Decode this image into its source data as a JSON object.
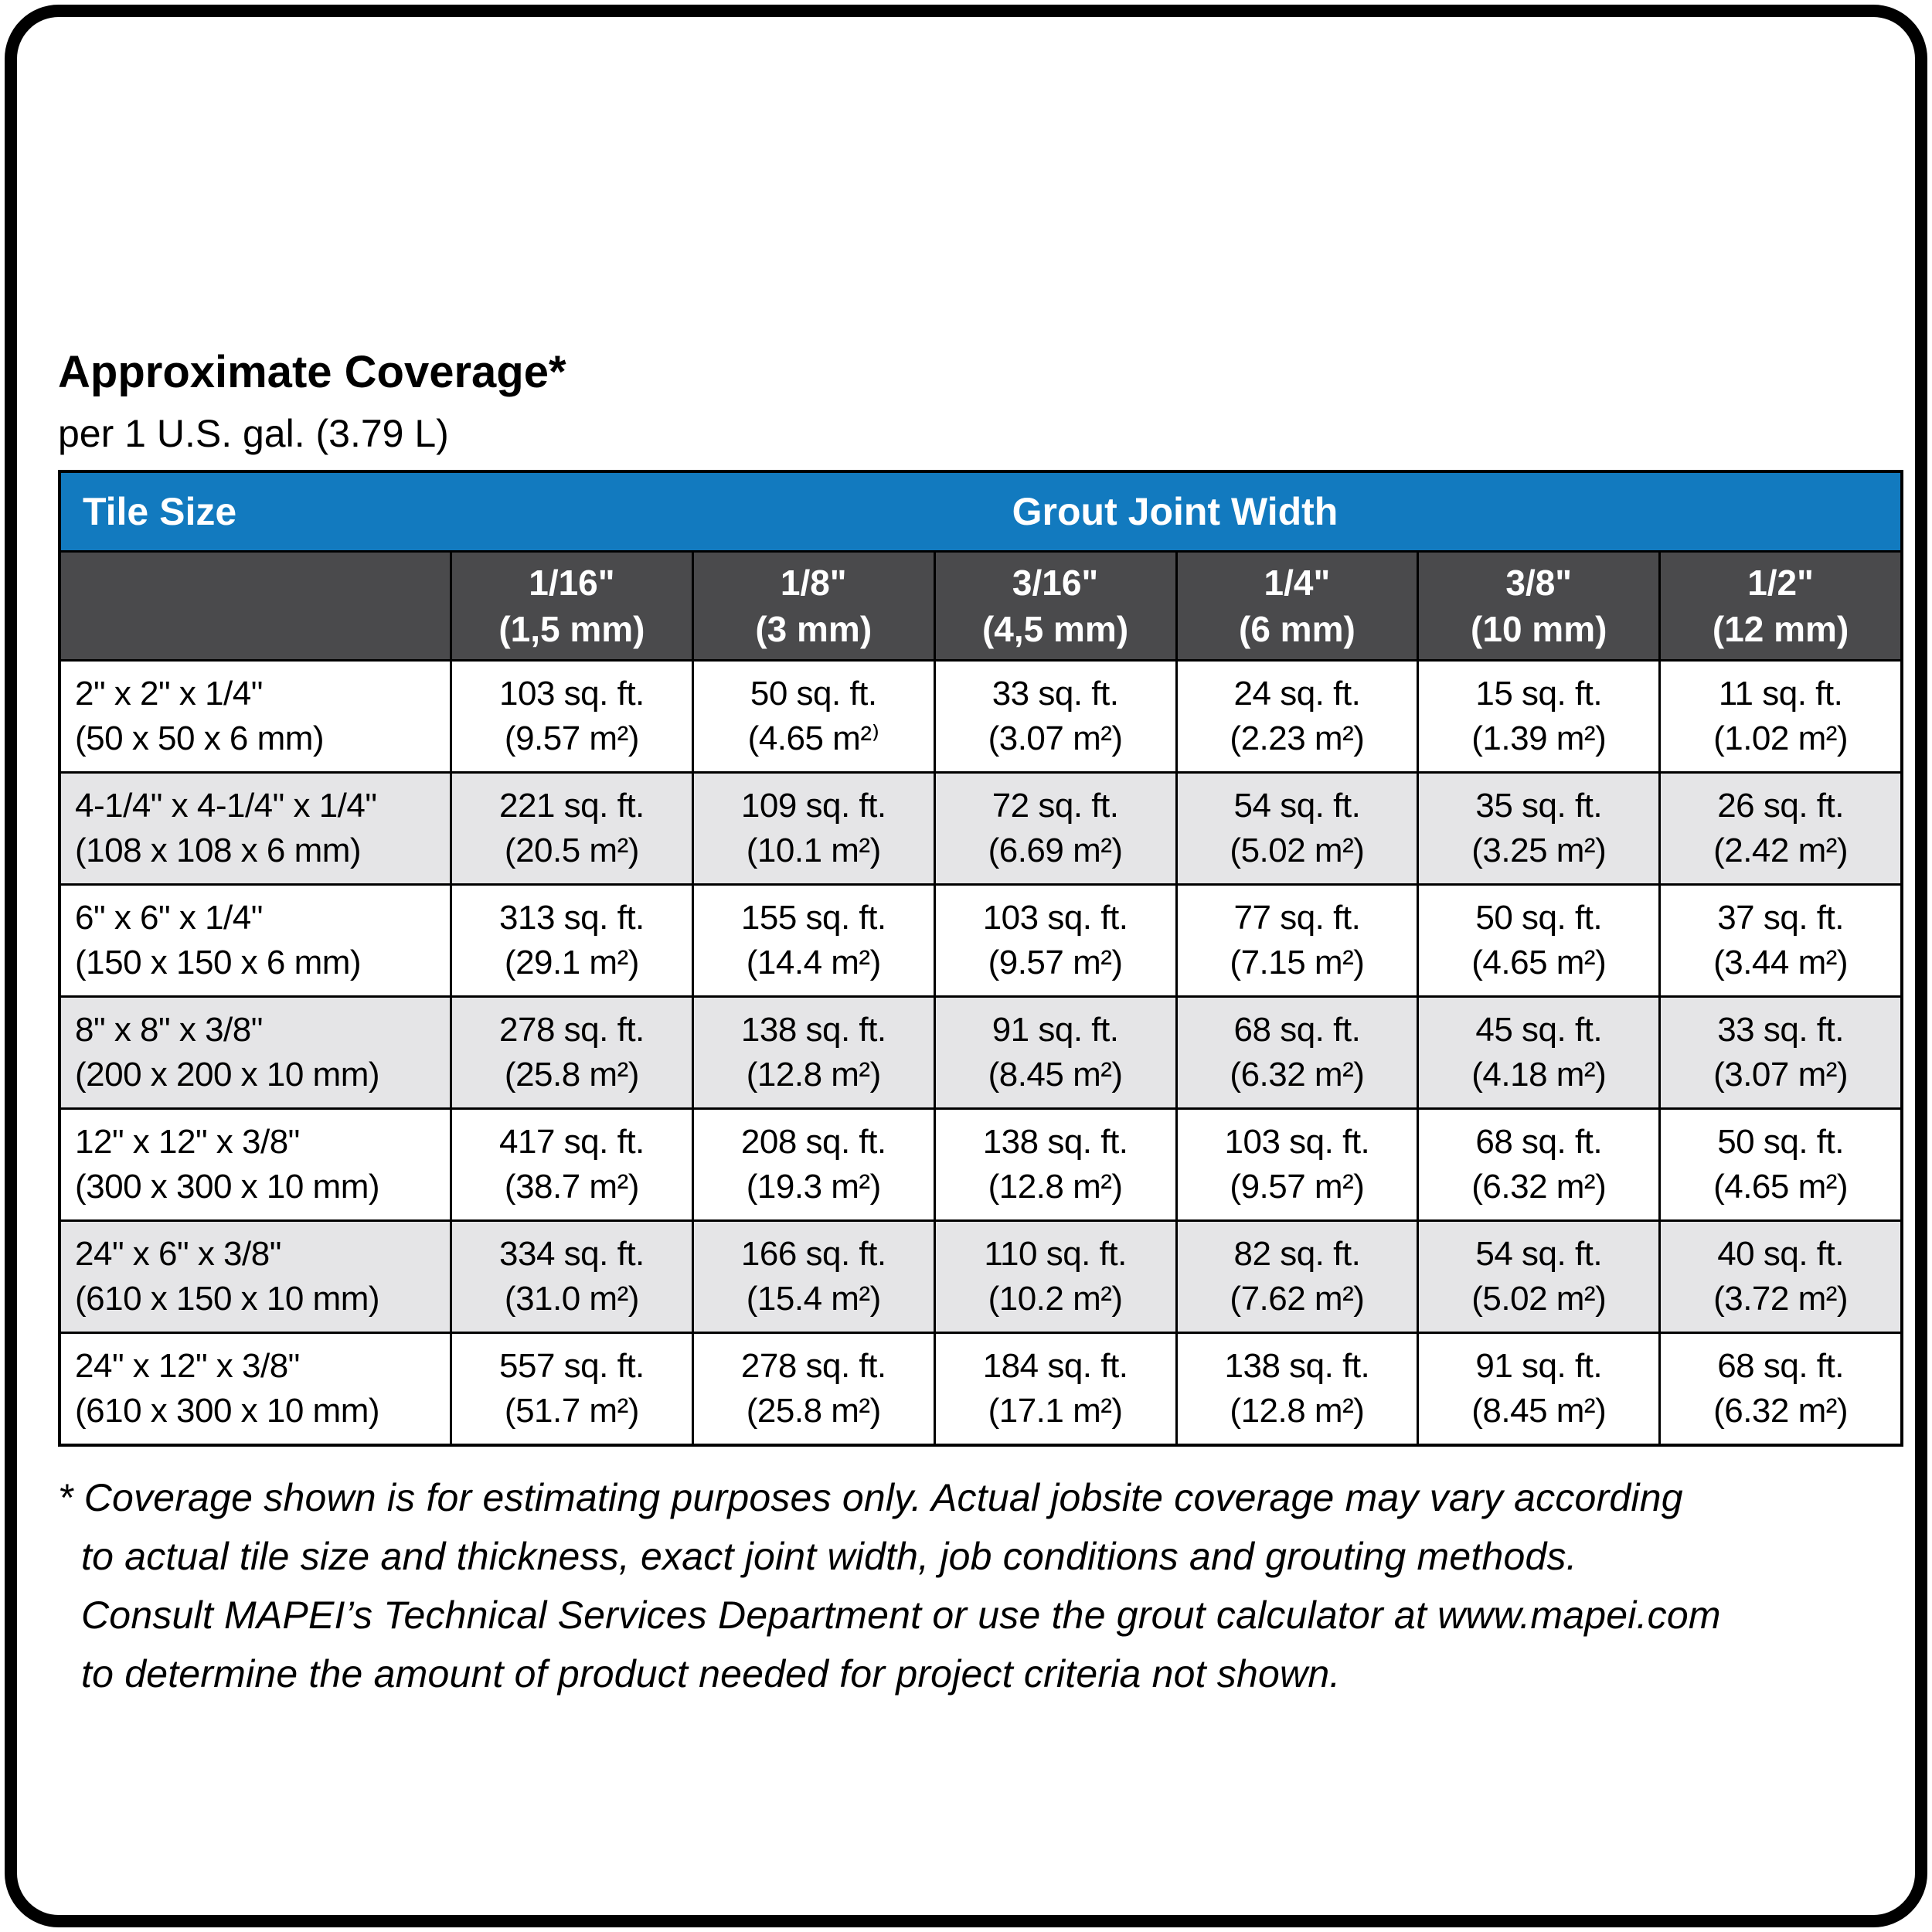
{
  "page": {
    "title": "Approximate Coverage*",
    "subtitle": "per 1 U.S. gal. (3.79 L)"
  },
  "colors": {
    "header_blue": "#127ABF",
    "subheader_gray": "#4A4A4C",
    "alt_row_gray": "#E5E5E7",
    "grid_line": "#000000",
    "header_text": "#FFFFFF"
  },
  "table": {
    "header": {
      "tile_size_label": "Tile Size",
      "grout_joint_width_label": "Grout Joint Width"
    },
    "joint_widths": [
      {
        "inches": "1/16\"",
        "mm": "(1,5 mm)"
      },
      {
        "inches": "1/8\"",
        "mm": "(3 mm)"
      },
      {
        "inches": "3/16\"",
        "mm": "(4,5 mm)"
      },
      {
        "inches": "1/4\"",
        "mm": "(6 mm)"
      },
      {
        "inches": "3/8\"",
        "mm": "(10 mm)"
      },
      {
        "inches": "1/2\"",
        "mm": "(12 mm)"
      }
    ],
    "rows": [
      {
        "tile_in": "2\" x 2\" x 1/4\"",
        "tile_mm": "(50 x 50 x 6 mm)",
        "cells": [
          {
            "sqft": "103 sq. ft.",
            "m2": "(9.57 m²)"
          },
          {
            "sqft": "50 sq. ft.",
            "m2": "(4.65 m²⁾"
          },
          {
            "sqft": "33 sq. ft.",
            "m2": "(3.07 m²)"
          },
          {
            "sqft": "24 sq. ft.",
            "m2": "(2.23 m²)"
          },
          {
            "sqft": "15 sq. ft.",
            "m2": "(1.39 m²)"
          },
          {
            "sqft": "11 sq. ft.",
            "m2": "(1.02 m²)"
          }
        ]
      },
      {
        "tile_in": "4-1/4\" x 4-1/4\" x 1/4\"",
        "tile_mm": "(108 x 108 x 6 mm)",
        "cells": [
          {
            "sqft": "221 sq. ft.",
            "m2": "(20.5 m²)"
          },
          {
            "sqft": "109 sq. ft.",
            "m2": "(10.1 m²)"
          },
          {
            "sqft": "72 sq. ft.",
            "m2": "(6.69 m²)"
          },
          {
            "sqft": "54 sq. ft.",
            "m2": "(5.02 m²)"
          },
          {
            "sqft": "35 sq. ft.",
            "m2": "(3.25 m²)"
          },
          {
            "sqft": "26 sq. ft.",
            "m2": "(2.42 m²)"
          }
        ]
      },
      {
        "tile_in": "6\" x 6\" x 1/4\"",
        "tile_mm": "(150 x 150 x 6 mm)",
        "cells": [
          {
            "sqft": "313 sq. ft.",
            "m2": "(29.1 m²)"
          },
          {
            "sqft": "155 sq. ft.",
            "m2": "(14.4 m²)"
          },
          {
            "sqft": "103 sq. ft.",
            "m2": "(9.57 m²)"
          },
          {
            "sqft": "77 sq. ft.",
            "m2": "(7.15 m²)"
          },
          {
            "sqft": "50 sq. ft.",
            "m2": "(4.65 m²)"
          },
          {
            "sqft": "37 sq. ft.",
            "m2": "(3.44 m²)"
          }
        ]
      },
      {
        "tile_in": "8\" x 8\" x 3/8\"",
        "tile_mm": "(200 x 200 x 10 mm)",
        "cells": [
          {
            "sqft": "278 sq. ft.",
            "m2": "(25.8 m²)"
          },
          {
            "sqft": "138 sq. ft.",
            "m2": "(12.8 m²)"
          },
          {
            "sqft": "91 sq. ft.",
            "m2": "(8.45 m²)"
          },
          {
            "sqft": "68 sq. ft.",
            "m2": "(6.32 m²)"
          },
          {
            "sqft": "45 sq. ft.",
            "m2": "(4.18 m²)"
          },
          {
            "sqft": "33 sq. ft.",
            "m2": "(3.07 m²)"
          }
        ]
      },
      {
        "tile_in": "12\" x 12\" x 3/8\"",
        "tile_mm": "(300 x 300 x 10 mm)",
        "cells": [
          {
            "sqft": "417 sq. ft.",
            "m2": "(38.7 m²)"
          },
          {
            "sqft": "208 sq. ft.",
            "m2": "(19.3 m²)"
          },
          {
            "sqft": "138 sq. ft.",
            "m2": "(12.8 m²)"
          },
          {
            "sqft": "103 sq. ft.",
            "m2": "(9.57 m²)"
          },
          {
            "sqft": "68 sq. ft.",
            "m2": "(6.32 m²)"
          },
          {
            "sqft": "50 sq. ft.",
            "m2": "(4.65 m²)"
          }
        ]
      },
      {
        "tile_in": "24\" x 6\" x 3/8\"",
        "tile_mm": "(610 x 150 x 10 mm)",
        "cells": [
          {
            "sqft": "334 sq. ft.",
            "m2": "(31.0 m²)"
          },
          {
            "sqft": "166 sq. ft.",
            "m2": "(15.4 m²)"
          },
          {
            "sqft": "110 sq. ft.",
            "m2": "(10.2 m²)"
          },
          {
            "sqft": "82 sq. ft.",
            "m2": "(7.62 m²)"
          },
          {
            "sqft": "54 sq. ft.",
            "m2": "(5.02 m²)"
          },
          {
            "sqft": "40 sq. ft.",
            "m2": "(3.72 m²)"
          }
        ]
      },
      {
        "tile_in": "24\" x 12\" x 3/8\"",
        "tile_mm": "(610 x 300 x 10 mm)",
        "cells": [
          {
            "sqft": "557 sq. ft.",
            "m2": "(51.7 m²)"
          },
          {
            "sqft": "278 sq. ft.",
            "m2": "(25.8 m²)"
          },
          {
            "sqft": "184 sq. ft.",
            "m2": "(17.1 m²)"
          },
          {
            "sqft": "138 sq. ft.",
            "m2": "(12.8 m²)"
          },
          {
            "sqft": "91 sq. ft.",
            "m2": "(8.45 m²)"
          },
          {
            "sqft": "68 sq. ft.",
            "m2": "(6.32 m²)"
          }
        ]
      }
    ]
  },
  "footnote": {
    "line1": "* Coverage shown is for estimating purposes only. Actual jobsite coverage may vary according",
    "line2": "to actual tile size and thickness, exact joint width, job conditions and grouting methods.",
    "line3": "Consult MAPEI’s Technical Services Department or use the grout calculator at www.mapei.com",
    "line4": "to determine the amount of product needed for project criteria not shown."
  }
}
